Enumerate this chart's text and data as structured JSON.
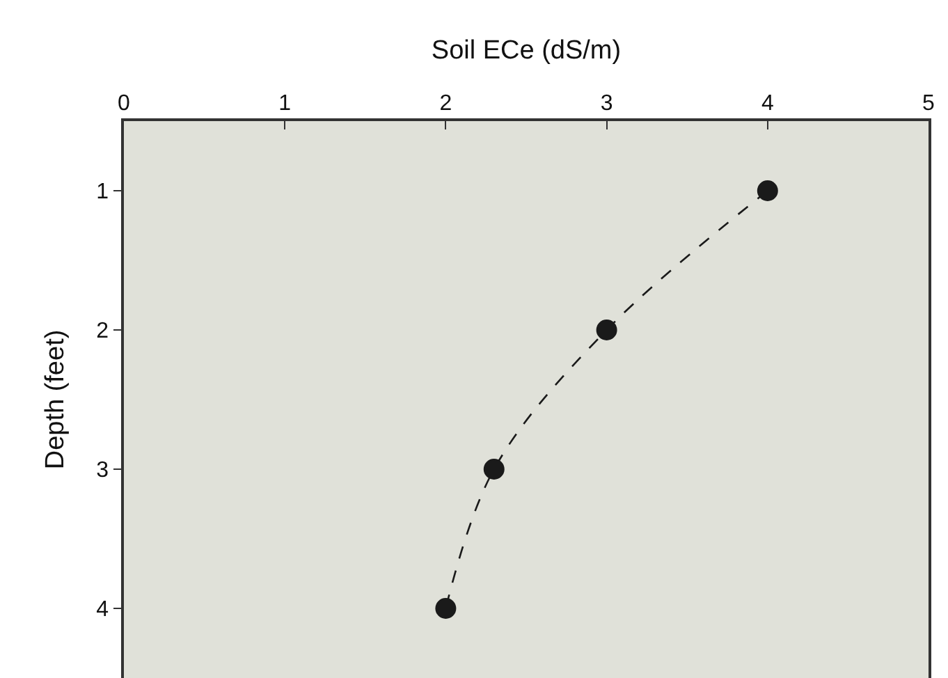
{
  "chart_data": {
    "type": "line",
    "xlabel": "Soil ECe (dS/m)",
    "ylabel": "Depth (feet)",
    "x": [
      4,
      3,
      2.3,
      2
    ],
    "series": [
      {
        "color": "#1a1a1a",
        "values": [
          1,
          2,
          3,
          4
        ]
      }
    ],
    "xlim": [
      0,
      5
    ],
    "xticks": [
      0,
      1,
      2,
      3,
      4,
      5
    ],
    "ylim": [
      4.5,
      0.5
    ],
    "yticks": [
      1,
      2,
      3,
      4
    ],
    "marker": "circle",
    "line_style": "dashed",
    "grid": false
  }
}
